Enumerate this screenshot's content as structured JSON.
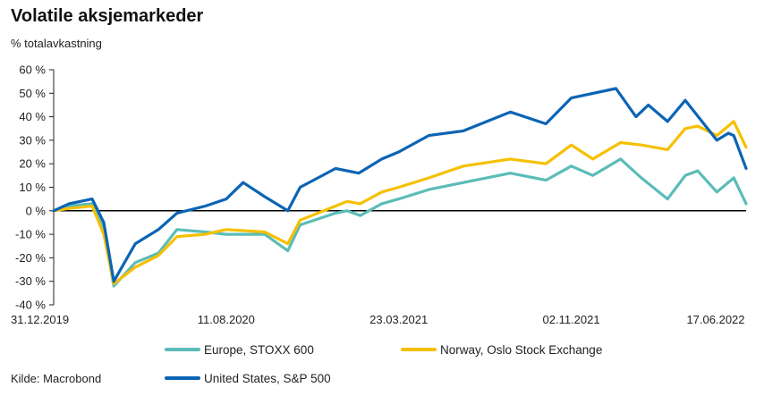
{
  "chart_data": {
    "type": "line",
    "title": "Volatile aksjemarkeder",
    "subtitle": "% totalavkastning",
    "source": "Kilde: Macrobond",
    "ylim": [
      -40,
      60
    ],
    "y_ticks": [
      "60 %",
      "50 %",
      "40 %",
      "30 %",
      "20 %",
      "10 %",
      "0 %",
      "-10 %",
      "-20 %",
      "-30 %",
      "-40 %"
    ],
    "y_tick_values": [
      60,
      50,
      40,
      30,
      20,
      10,
      0,
      -10,
      -20,
      -30,
      -40
    ],
    "x_start": "2019-12-31",
    "x_end": "2022-06-17",
    "x_ticks": [
      "31.12.2019",
      "11.08.2020",
      "23.03.2021",
      "02.11.2021",
      "17.06.2022"
    ],
    "x_tick_dates": [
      "2019-12-31",
      "2020-08-11",
      "2021-03-23",
      "2021-11-02",
      "2022-06-17"
    ],
    "legend_position": "bottom",
    "series": [
      {
        "name": "Europe, STOXX 600",
        "color": "#5bbcb8",
        "points": [
          [
            "2019-12-31",
            0
          ],
          [
            "2020-01-20",
            2
          ],
          [
            "2020-02-19",
            3
          ],
          [
            "2020-03-05",
            -8
          ],
          [
            "2020-03-18",
            -32
          ],
          [
            "2020-04-15",
            -22
          ],
          [
            "2020-05-15",
            -18
          ],
          [
            "2020-06-08",
            -8
          ],
          [
            "2020-07-15",
            -9
          ],
          [
            "2020-08-11",
            -10
          ],
          [
            "2020-09-30",
            -10
          ],
          [
            "2020-10-30",
            -17
          ],
          [
            "2020-11-15",
            -6
          ],
          [
            "2020-12-31",
            -1
          ],
          [
            "2021-01-15",
            0
          ],
          [
            "2021-02-01",
            -2
          ],
          [
            "2021-03-01",
            3
          ],
          [
            "2021-03-23",
            5
          ],
          [
            "2021-05-01",
            9
          ],
          [
            "2021-06-15",
            12
          ],
          [
            "2021-08-15",
            16
          ],
          [
            "2021-09-30",
            13
          ],
          [
            "2021-11-02",
            19
          ],
          [
            "2021-11-30",
            15
          ],
          [
            "2022-01-05",
            22
          ],
          [
            "2022-02-01",
            14
          ],
          [
            "2022-03-07",
            5
          ],
          [
            "2022-03-30",
            15
          ],
          [
            "2022-04-15",
            17
          ],
          [
            "2022-05-10",
            8
          ],
          [
            "2022-06-01",
            14
          ],
          [
            "2022-06-17",
            3
          ]
        ]
      },
      {
        "name": "Norway, Oslo Stock Exchange",
        "color": "#f6c000",
        "points": [
          [
            "2019-12-31",
            0
          ],
          [
            "2020-01-20",
            1
          ],
          [
            "2020-02-19",
            2
          ],
          [
            "2020-03-05",
            -10
          ],
          [
            "2020-03-18",
            -31
          ],
          [
            "2020-04-15",
            -24
          ],
          [
            "2020-05-15",
            -19
          ],
          [
            "2020-06-08",
            -11
          ],
          [
            "2020-07-15",
            -10
          ],
          [
            "2020-08-11",
            -8
          ],
          [
            "2020-09-30",
            -9
          ],
          [
            "2020-10-30",
            -14
          ],
          [
            "2020-11-15",
            -4
          ],
          [
            "2020-12-31",
            2
          ],
          [
            "2021-01-15",
            4
          ],
          [
            "2021-02-01",
            3
          ],
          [
            "2021-03-01",
            8
          ],
          [
            "2021-03-23",
            10
          ],
          [
            "2021-05-01",
            14
          ],
          [
            "2021-06-15",
            19
          ],
          [
            "2021-08-15",
            22
          ],
          [
            "2021-09-30",
            20
          ],
          [
            "2021-11-02",
            28
          ],
          [
            "2021-11-30",
            22
          ],
          [
            "2022-01-05",
            29
          ],
          [
            "2022-02-01",
            28
          ],
          [
            "2022-03-07",
            26
          ],
          [
            "2022-03-30",
            35
          ],
          [
            "2022-04-15",
            36
          ],
          [
            "2022-05-10",
            32
          ],
          [
            "2022-06-01",
            38
          ],
          [
            "2022-06-17",
            27
          ]
        ]
      },
      {
        "name": "United States, S&P 500",
        "color": "#0b64b4",
        "points": [
          [
            "2019-12-31",
            0
          ],
          [
            "2020-01-20",
            3
          ],
          [
            "2020-02-19",
            5
          ],
          [
            "2020-03-05",
            -5
          ],
          [
            "2020-03-18",
            -30
          ],
          [
            "2020-04-15",
            -14
          ],
          [
            "2020-05-15",
            -8
          ],
          [
            "2020-06-08",
            -1
          ],
          [
            "2020-07-15",
            2
          ],
          [
            "2020-08-11",
            5
          ],
          [
            "2020-09-02",
            12
          ],
          [
            "2020-09-30",
            6
          ],
          [
            "2020-10-30",
            0
          ],
          [
            "2020-11-15",
            10
          ],
          [
            "2020-12-31",
            18
          ],
          [
            "2021-01-30",
            16
          ],
          [
            "2021-03-01",
            22
          ],
          [
            "2021-03-23",
            25
          ],
          [
            "2021-05-01",
            32
          ],
          [
            "2021-06-15",
            34
          ],
          [
            "2021-08-15",
            42
          ],
          [
            "2021-09-30",
            37
          ],
          [
            "2021-11-02",
            48
          ],
          [
            "2021-12-30",
            52
          ],
          [
            "2022-01-25",
            40
          ],
          [
            "2022-02-10",
            45
          ],
          [
            "2022-03-07",
            38
          ],
          [
            "2022-03-30",
            47
          ],
          [
            "2022-05-10",
            30
          ],
          [
            "2022-05-25",
            33
          ],
          [
            "2022-06-01",
            32
          ],
          [
            "2022-06-17",
            18
          ]
        ]
      }
    ]
  }
}
